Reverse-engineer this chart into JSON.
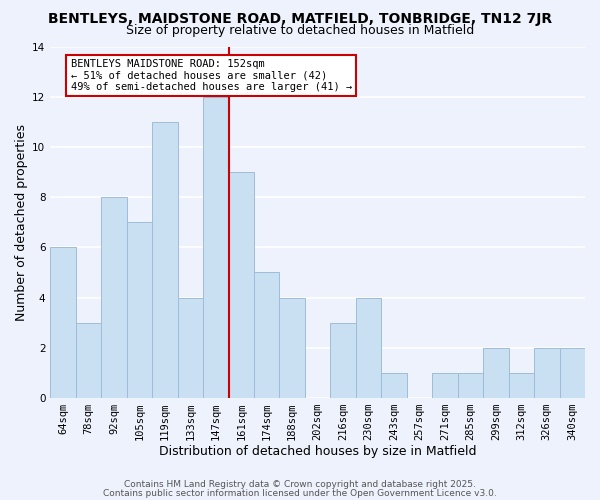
{
  "title": "BENTLEYS, MAIDSTONE ROAD, MATFIELD, TONBRIDGE, TN12 7JR",
  "subtitle": "Size of property relative to detached houses in Matfield",
  "xlabel": "Distribution of detached houses by size in Matfield",
  "ylabel": "Number of detached properties",
  "bar_labels": [
    "64sqm",
    "78sqm",
    "92sqm",
    "105sqm",
    "119sqm",
    "133sqm",
    "147sqm",
    "161sqm",
    "174sqm",
    "188sqm",
    "202sqm",
    "216sqm",
    "230sqm",
    "243sqm",
    "257sqm",
    "271sqm",
    "285sqm",
    "299sqm",
    "312sqm",
    "326sqm",
    "340sqm"
  ],
  "bar_values": [
    6,
    3,
    8,
    7,
    11,
    4,
    12,
    9,
    5,
    4,
    0,
    3,
    4,
    1,
    0,
    1,
    1,
    2,
    1,
    2,
    2
  ],
  "bar_color": "#c9dff2",
  "bar_edge_color": "#a0bcd8",
  "vline_color": "#cc0000",
  "annotation_title": "BENTLEYS MAIDSTONE ROAD: 152sqm",
  "annotation_line1": "← 51% of detached houses are smaller (42)",
  "annotation_line2": "49% of semi-detached houses are larger (41) →",
  "annotation_box_facecolor": "#ffffff",
  "annotation_box_edgecolor": "#cc0000",
  "ylim": [
    0,
    14
  ],
  "yticks": [
    0,
    2,
    4,
    6,
    8,
    10,
    12,
    14
  ],
  "footer1": "Contains HM Land Registry data © Crown copyright and database right 2025.",
  "footer2": "Contains public sector information licensed under the Open Government Licence v3.0.",
  "background_color": "#eef2fc",
  "grid_color": "#ffffff",
  "title_fontsize": 10,
  "subtitle_fontsize": 9,
  "axis_label_fontsize": 9,
  "tick_fontsize": 7.5,
  "annotation_fontsize": 7.5,
  "footer_fontsize": 6.5
}
